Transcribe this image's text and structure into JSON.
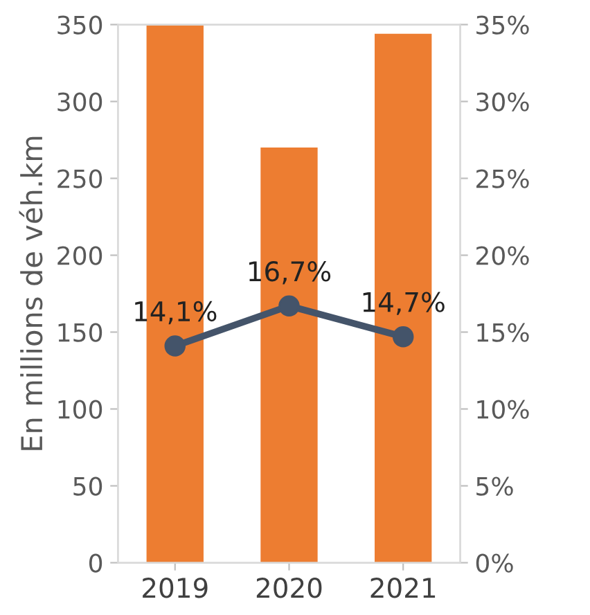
{
  "chart_data": {
    "type": "bar",
    "ylabel": "En millions de véh.km",
    "categories": [
      "2019",
      "2020",
      "2021"
    ],
    "series": [
      {
        "color": "#ed7d31",
        "values": [
          350,
          270,
          344
        ]
      },
      {
        "type": "line",
        "axis": "y2",
        "color": "#44546a",
        "marker": "circle",
        "values": [
          14.1,
          16.7,
          14.7
        ],
        "value_labels": [
          "14,1%",
          "16,7%",
          "14,7%"
        ]
      }
    ],
    "ylim": [
      0,
      350
    ],
    "yticks": [
      0,
      50,
      100,
      150,
      200,
      250,
      300,
      350
    ],
    "y2lim": [
      0,
      35
    ],
    "y2ticks": [
      {
        "value": 0,
        "label": "0%"
      },
      {
        "value": 5,
        "label": "5%"
      },
      {
        "value": 10,
        "label": "10%"
      },
      {
        "value": 15,
        "label": "15%"
      },
      {
        "value": 20,
        "label": "20%"
      },
      {
        "value": 25,
        "label": "25%"
      },
      {
        "value": 30,
        "label": "30%"
      },
      {
        "value": 35,
        "label": "35%"
      }
    ],
    "grid": false,
    "legend": false
  }
}
